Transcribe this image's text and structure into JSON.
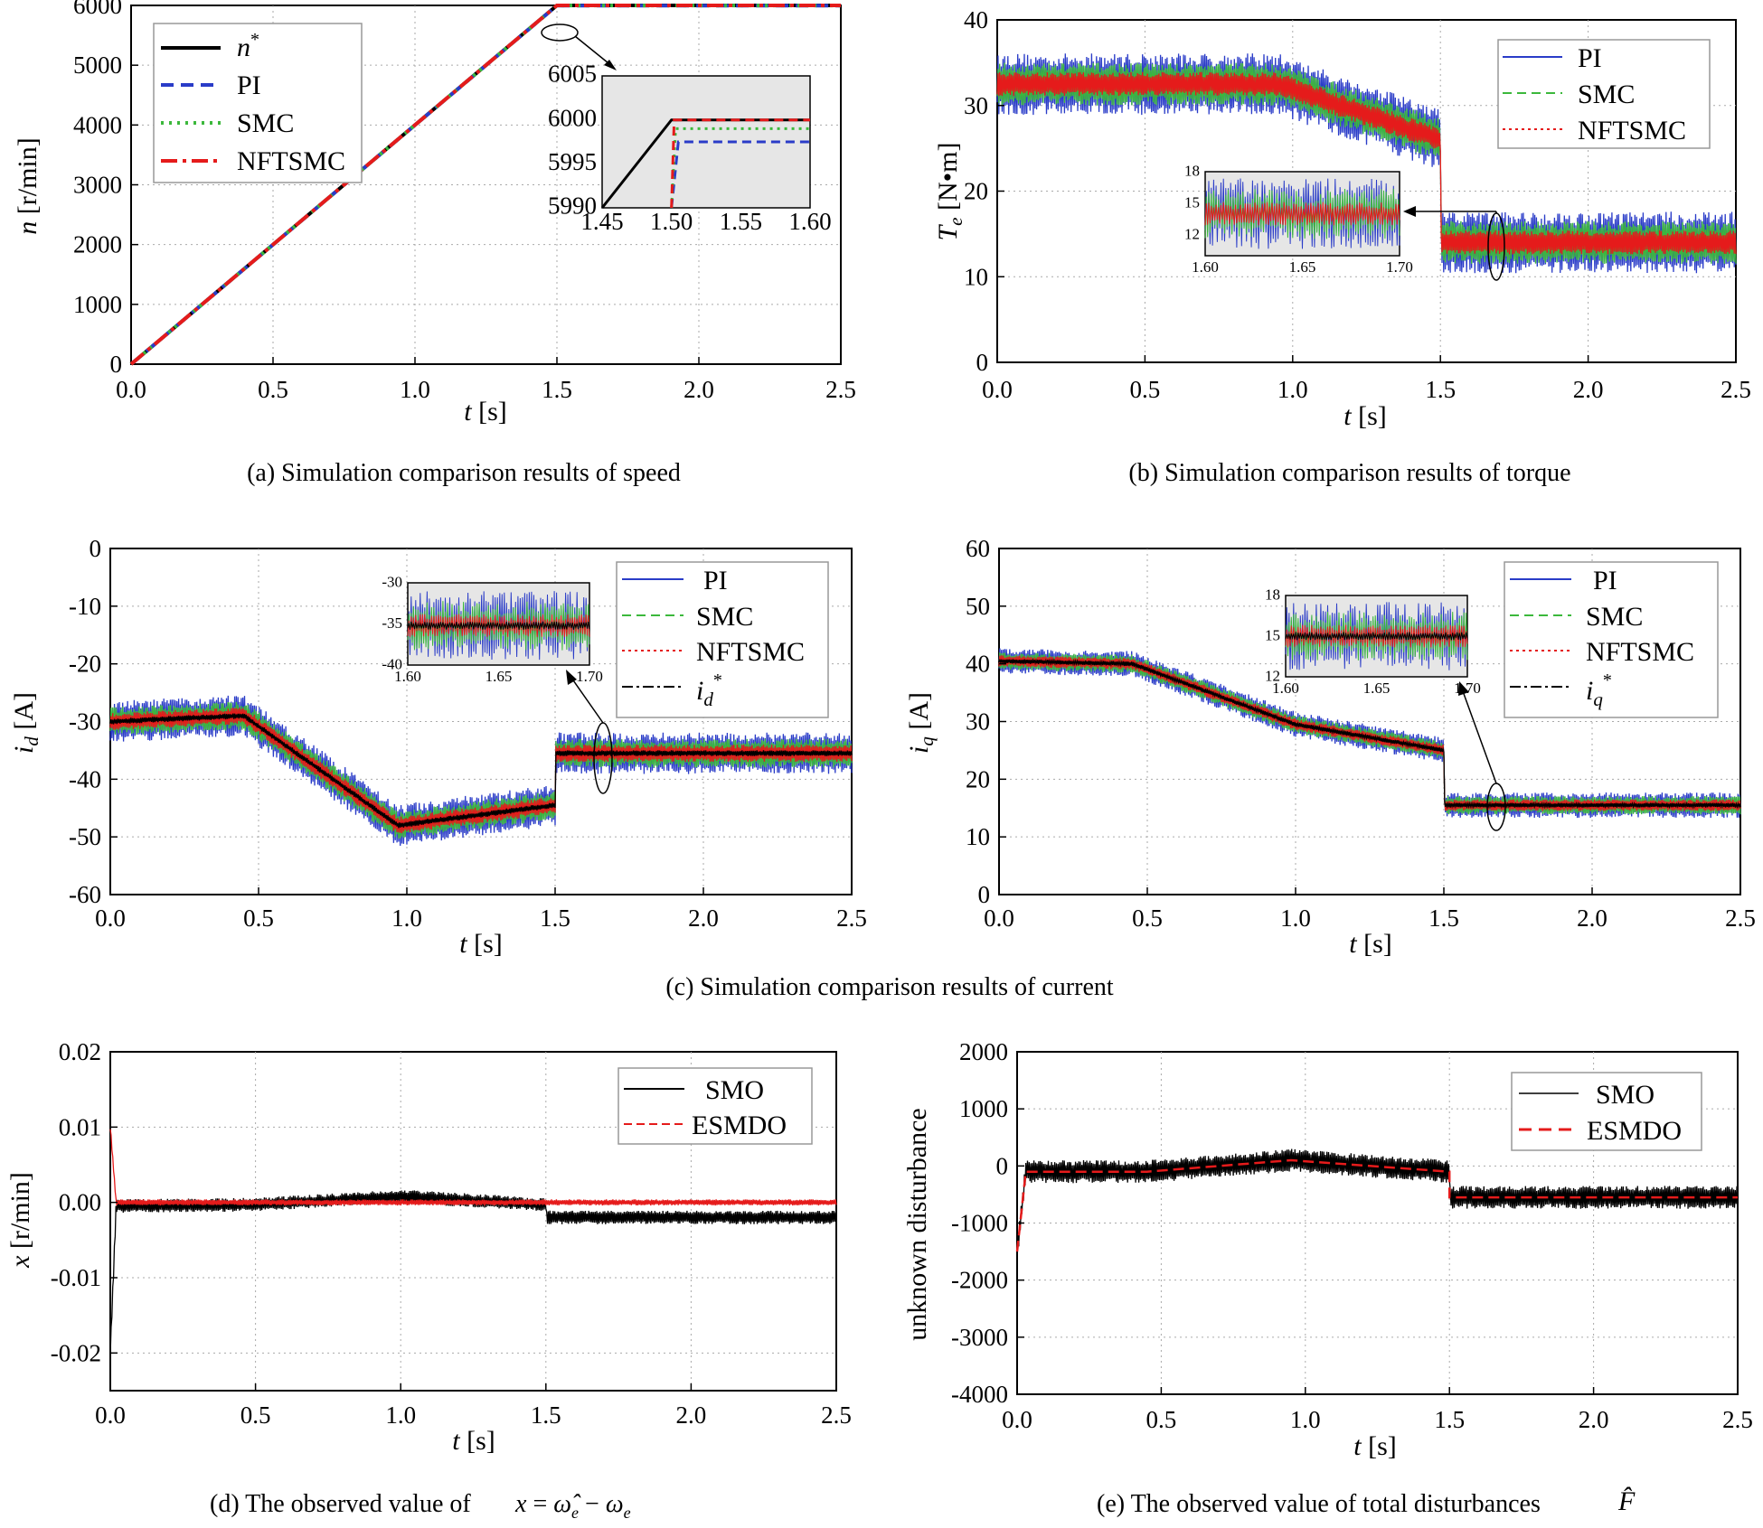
{
  "chart_data": [
    {
      "id": "a",
      "type": "line",
      "caption": "(a) Simulation comparison results of speed",
      "xlabel": "t [s]",
      "ylabel": "n [r/min]",
      "xlim": [
        0,
        2.5
      ],
      "ylim": [
        0,
        6000
      ],
      "xticks": [
        "0.0",
        "0.5",
        "1.0",
        "1.5",
        "2.0",
        "2.5"
      ],
      "yticks": [
        "0",
        "1000",
        "2000",
        "3000",
        "4000",
        "5000",
        "6000"
      ],
      "grid": true,
      "legend": "top-left",
      "series": [
        {
          "name": "n*",
          "color": "#000000",
          "x": [
            0,
            1.5,
            2.5
          ],
          "y": [
            0,
            6000,
            6000
          ]
        },
        {
          "name": "PI",
          "color": "#2a3cc8",
          "x": [
            0,
            1.5,
            2.5
          ],
          "y": [
            0,
            5997,
            5997
          ]
        },
        {
          "name": "SMC",
          "color": "#3cb83c",
          "x": [
            0,
            1.5,
            2.5
          ],
          "y": [
            0,
            5999,
            5999
          ]
        },
        {
          "name": "NFTSMC",
          "color": "#e51b1b",
          "x": [
            0,
            1.5,
            2.5
          ],
          "y": [
            0,
            6000,
            6000
          ]
        }
      ],
      "inset": {
        "xlim": [
          1.45,
          1.6
        ],
        "ylim": [
          5990,
          6005
        ],
        "xticks": [
          "1.45",
          "1.50",
          "1.55",
          "1.60"
        ],
        "yticks": [
          "5990",
          "5995",
          "6000",
          "6005"
        ],
        "series": [
          {
            "name": "n*",
            "x": [
              1.45,
              1.5,
              1.6
            ],
            "y": [
              5990,
              6000,
              6000
            ]
          },
          {
            "name": "PI",
            "x": [
              1.5,
              1.505,
              1.6
            ],
            "y": [
              5990,
              5997.5,
              5997.5
            ]
          },
          {
            "name": "SMC",
            "x": [
              1.5,
              1.503,
              1.6
            ],
            "y": [
              5990,
              5999,
              5999
            ]
          },
          {
            "name": "NFTSMC",
            "x": [
              1.5,
              1.502,
              1.6
            ],
            "y": [
              5990,
              6000,
              6000
            ]
          }
        ]
      }
    },
    {
      "id": "b",
      "type": "line",
      "caption": "(b) Simulation comparison results of torque",
      "xlabel": "t [s]",
      "ylabel": "Te [N•m]",
      "xlim": [
        0,
        2.5
      ],
      "ylim": [
        0,
        40
      ],
      "xticks": [
        "0.0",
        "0.5",
        "1.0",
        "1.5",
        "2.0",
        "2.5"
      ],
      "yticks": [
        "0",
        "10",
        "20",
        "30",
        "40"
      ],
      "grid": true,
      "legend": "top-right",
      "series": [
        {
          "name": "PI",
          "color": "#2a3cc8",
          "x": [
            0,
            0.95,
            1.5,
            1.5,
            2.5
          ],
          "y": [
            32.5,
            32.5,
            26,
            14,
            14
          ],
          "spread": 3.6
        },
        {
          "name": "SMC",
          "color": "#3cb83c",
          "x": [
            0,
            0.95,
            1.5,
            1.5,
            2.5
          ],
          "y": [
            32.5,
            32.5,
            26,
            14,
            14
          ],
          "spread": 2.5
        },
        {
          "name": "NFTSMC",
          "color": "#e51b1b",
          "x": [
            0,
            0.95,
            1.5,
            1.5,
            2.5
          ],
          "y": [
            32.5,
            32.5,
            26,
            14,
            14
          ],
          "spread": 1.4
        }
      ],
      "inset": {
        "xlim": [
          1.6,
          1.7
        ],
        "ylim": [
          10,
          18
        ],
        "xticks": [
          "1.60",
          "1.65",
          "1.70"
        ],
        "yticks": [
          "12",
          "15",
          "18"
        ],
        "center": 14
      }
    },
    {
      "id": "c1",
      "type": "line",
      "caption": "(c) Simulation comparison results of current",
      "xlabel": "t [s]",
      "ylabel": "id [A]",
      "xlim": [
        0,
        2.5
      ],
      "ylim": [
        -60,
        0
      ],
      "xticks": [
        "0.0",
        "0.5",
        "1.0",
        "1.5",
        "2.0",
        "2.5"
      ],
      "yticks": [
        "0",
        "-10",
        "-20",
        "-30",
        "-40",
        "-50",
        "-60"
      ],
      "grid": true,
      "legend": "top-right",
      "series": [
        {
          "name": "PI",
          "color": "#2a3cc8",
          "x": [
            0,
            0.45,
            0.97,
            1.5,
            1.5,
            2.5
          ],
          "y": [
            -30,
            -29,
            -48,
            -44.5,
            -35.5,
            -35.5
          ],
          "spread": 3.6
        },
        {
          "name": "SMC",
          "color": "#3cb83c",
          "x": [
            0,
            0.45,
            0.97,
            1.5,
            1.5,
            2.5
          ],
          "y": [
            -30,
            -29,
            -48,
            -44.5,
            -35.5,
            -35.5
          ],
          "spread": 2.5
        },
        {
          "name": "NFTSMC",
          "color": "#e51b1b",
          "x": [
            0,
            0.45,
            0.97,
            1.5,
            1.5,
            2.5
          ],
          "y": [
            -30,
            -29,
            -48,
            -44.5,
            -35.5,
            -35.5
          ],
          "spread": 1.5
        },
        {
          "name": "id*",
          "color": "#000000",
          "x": [
            0,
            0.45,
            0.97,
            1.5,
            1.5,
            2.5
          ],
          "y": [
            -30,
            -29,
            -48,
            -44.5,
            -35.5,
            -35.5
          ],
          "spread": 0.5
        }
      ],
      "inset": {
        "xlim": [
          1.6,
          1.7
        ],
        "ylim": [
          -40,
          -30
        ],
        "xticks": [
          "1.60",
          "1.65",
          "1.70"
        ],
        "yticks": [
          "-30",
          "-35",
          "-40"
        ],
        "center": -35.2
      }
    },
    {
      "id": "c2",
      "type": "line",
      "caption": "",
      "xlabel": "t [s]",
      "ylabel": "iq [A]",
      "xlim": [
        0,
        2.5
      ],
      "ylim": [
        0,
        60
      ],
      "xticks": [
        "0.0",
        "0.5",
        "1.0",
        "1.5",
        "2.0",
        "2.5"
      ],
      "yticks": [
        "0",
        "10",
        "20",
        "30",
        "40",
        "50",
        "60"
      ],
      "grid": true,
      "legend": "top-right",
      "series": [
        {
          "name": "PI",
          "color": "#2a3cc8",
          "x": [
            0,
            0.45,
            1.0,
            1.5,
            1.5,
            2.5
          ],
          "y": [
            40.5,
            40,
            29.5,
            25,
            15.5,
            15.5
          ],
          "spread": 2.2
        },
        {
          "name": "SMC",
          "color": "#3cb83c",
          "x": [
            0,
            0.45,
            1.0,
            1.5,
            1.5,
            2.5
          ],
          "y": [
            40.5,
            40,
            29.5,
            25,
            15.5,
            15.5
          ],
          "spread": 1.6
        },
        {
          "name": "NFTSMC",
          "color": "#e51b1b",
          "x": [
            0,
            0.45,
            1.0,
            1.5,
            1.5,
            2.5
          ],
          "y": [
            40.5,
            40,
            29.5,
            25,
            15.5,
            15.5
          ],
          "spread": 1.0
        },
        {
          "name": "iq*",
          "color": "#000000",
          "x": [
            0,
            0.45,
            1.0,
            1.5,
            1.5,
            2.5
          ],
          "y": [
            40.5,
            40,
            29.5,
            25,
            15.5,
            15.5
          ],
          "spread": 0.4
        }
      ],
      "inset": {
        "xlim": [
          1.6,
          1.7
        ],
        "ylim": [
          12,
          18
        ],
        "xticks": [
          "1.60",
          "1.65",
          "1.70"
        ],
        "yticks": [
          "12",
          "15",
          "18"
        ],
        "center": 15
      }
    },
    {
      "id": "d",
      "type": "line",
      "caption": "(d) The observed value of",
      "xlabel": "t [s]",
      "ylabel": "x [r/min]",
      "xlim": [
        0,
        2.5
      ],
      "ylim": [
        -0.025,
        0.02
      ],
      "xticks": [
        "0.0",
        "0.5",
        "1.0",
        "1.5",
        "2.0",
        "2.5"
      ],
      "yticks": [
        "0.02",
        "0.01",
        "0.00",
        "-0.01",
        "-0.02"
      ],
      "grid": true,
      "legend": "top-right",
      "series": [
        {
          "name": "SMO",
          "color": "#000000",
          "x": [
            0,
            0.02,
            0.5,
            1.0,
            1.5,
            1.5,
            2.5
          ],
          "y": [
            -0.02,
            -0.0005,
            -0.0003,
            0.0008,
            -0.0003,
            -0.002,
            -0.002
          ],
          "spread": 0.0009
        },
        {
          "name": "ESMDO",
          "color": "#e51b1b",
          "x": [
            0,
            0.02,
            1.5,
            2.5
          ],
          "y": [
            0.01,
            0.0,
            0.0,
            0.0
          ],
          "spread": 0.0004
        }
      ]
    },
    {
      "id": "e",
      "type": "line",
      "caption": "(e) The observed value of total disturbances",
      "xlabel": "t [s]",
      "ylabel": "unknown disturbance",
      "xlim": [
        0,
        2.5
      ],
      "ylim": [
        -4000,
        2000
      ],
      "xticks": [
        "0.0",
        "0.5",
        "1.0",
        "1.5",
        "2.0",
        "2.5"
      ],
      "yticks": [
        "2000",
        "1000",
        "0",
        "-1000",
        "-2000",
        "-3000",
        "-4000"
      ],
      "grid": true,
      "legend": "top-right",
      "series": [
        {
          "name": "SMO",
          "color": "#000000",
          "x": [
            0,
            0.03,
            0.45,
            0.95,
            1.5,
            1.5,
            2.5
          ],
          "y": [
            -1500,
            -100,
            -100,
            100,
            -100,
            -550,
            -550
          ],
          "spread": 200
        },
        {
          "name": "ESMDO",
          "color": "#e51b1b",
          "x": [
            0,
            0.03,
            0.45,
            0.95,
            1.5,
            1.5,
            2.5
          ],
          "y": [
            -1500,
            -100,
            -100,
            100,
            -100,
            -550,
            -550
          ],
          "spread": 0
        }
      ]
    }
  ]
}
